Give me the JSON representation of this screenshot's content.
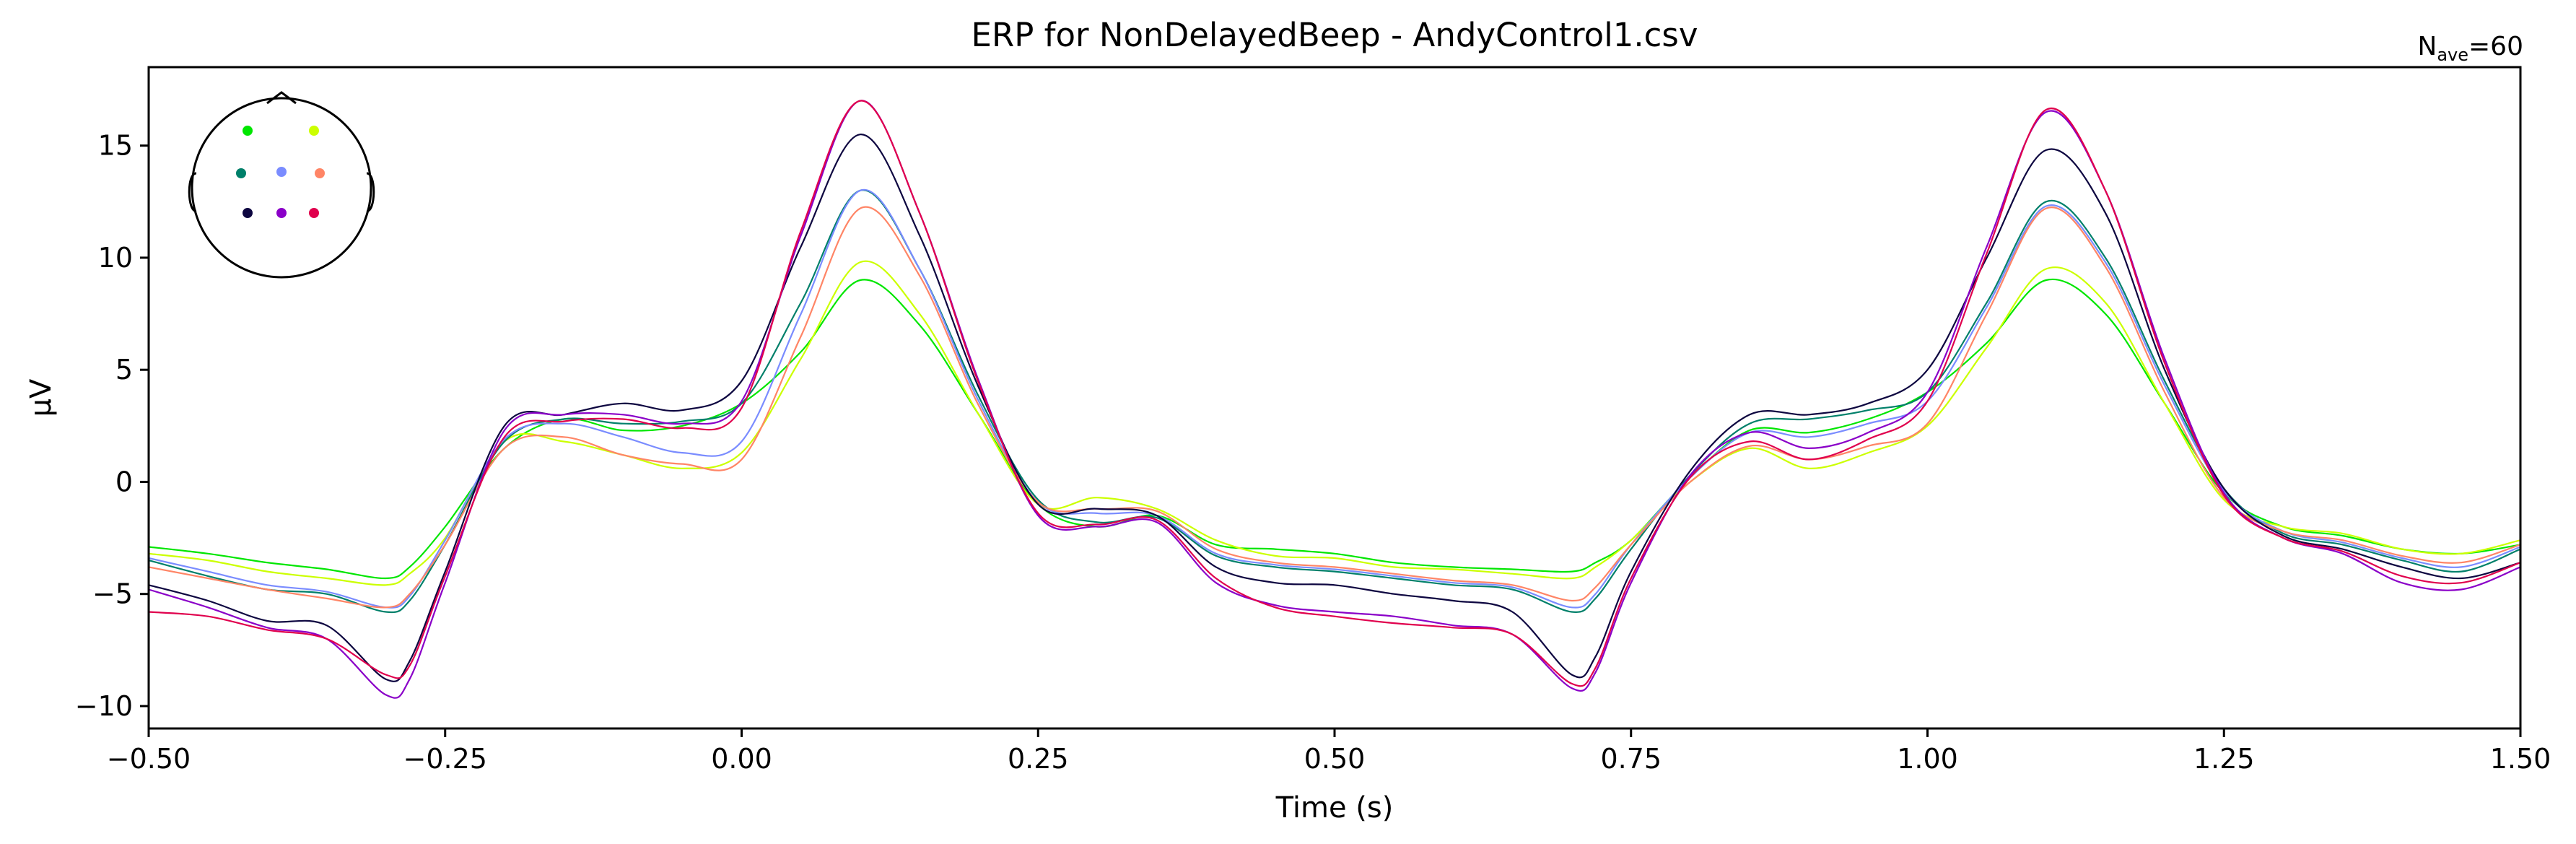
{
  "chart_data": {
    "type": "line",
    "title": "ERP for NonDelayedBeep - AndyControl1.csv",
    "nave_label": {
      "base": "N",
      "sub": "ave",
      "suffix": "=60"
    },
    "xlabel": "Time (s)",
    "ylabel": "µV",
    "xlim": [
      -0.5,
      1.5
    ],
    "ylim": [
      -11,
      18.5
    ],
    "xticks": [
      -0.5,
      -0.25,
      0.0,
      0.25,
      0.5,
      0.75,
      1.0,
      1.25,
      1.5
    ],
    "xtick_labels": [
      "−0.50",
      "−0.25",
      "0.00",
      "0.25",
      "0.50",
      "0.75",
      "1.00",
      "1.25",
      "1.50"
    ],
    "yticks": [
      -10,
      -5,
      0,
      5,
      10,
      15
    ],
    "ytick_labels": [
      "−10",
      "−5",
      "0",
      "5",
      "10",
      "15"
    ],
    "grid": false,
    "sensor_inset": {
      "sensors": [
        {
          "color": "#00e600"
        },
        {
          "color": "#ccff00"
        },
        {
          "color": "#00806a"
        },
        {
          "color": "#7a8cff"
        },
        {
          "color": "#ff8566"
        },
        {
          "color": "#0d0640"
        },
        {
          "color": "#8a00c8"
        },
        {
          "color": "#e0004d"
        }
      ]
    },
    "x": [
      -0.5,
      -0.45,
      -0.4,
      -0.35,
      -0.3,
      -0.28,
      -0.25,
      -0.2,
      -0.15,
      -0.1,
      -0.05,
      0.0,
      0.05,
      0.1,
      0.15,
      0.2,
      0.25,
      0.3,
      0.35,
      0.4,
      0.45,
      0.5,
      0.55,
      0.6,
      0.65,
      0.7,
      0.72,
      0.75,
      0.8,
      0.85,
      0.9,
      0.95,
      1.0,
      1.05,
      1.1,
      1.15,
      1.2,
      1.25,
      1.3,
      1.35,
      1.4,
      1.45,
      1.5
    ],
    "series": [
      {
        "color": "#00e600",
        "values": [
          -2.9,
          -3.2,
          -3.6,
          -3.9,
          -4.3,
          -3.8,
          -2.0,
          1.5,
          2.8,
          2.3,
          2.5,
          3.5,
          5.8,
          9.0,
          7.0,
          3.0,
          -1.0,
          -2.0,
          -1.5,
          -2.8,
          -3.0,
          -3.2,
          -3.6,
          -3.8,
          -3.9,
          -4.0,
          -3.6,
          -2.6,
          0.2,
          2.3,
          2.2,
          2.8,
          4.0,
          6.2,
          9.0,
          7.5,
          3.5,
          -0.5,
          -2.0,
          -2.4,
          -3.0,
          -3.2,
          -2.8
        ]
      },
      {
        "color": "#ccff00",
        "values": [
          -3.2,
          -3.5,
          -4.0,
          -4.3,
          -4.6,
          -4.1,
          -2.5,
          1.8,
          1.8,
          1.2,
          0.6,
          1.3,
          5.5,
          9.8,
          7.5,
          3.0,
          -1.0,
          -0.7,
          -1.2,
          -2.6,
          -3.3,
          -3.4,
          -3.8,
          -3.9,
          -4.1,
          -4.3,
          -3.8,
          -2.6,
          0.0,
          1.5,
          0.6,
          1.3,
          2.5,
          6.0,
          9.5,
          8.0,
          3.5,
          -0.8,
          -2.0,
          -2.3,
          -3.0,
          -3.2,
          -2.6
        ]
      },
      {
        "color": "#00806a",
        "values": [
          -3.5,
          -4.2,
          -4.8,
          -5.0,
          -5.8,
          -5.3,
          -2.8,
          1.8,
          2.8,
          2.6,
          2.7,
          3.5,
          8.0,
          13.0,
          9.5,
          3.8,
          -0.8,
          -1.8,
          -1.6,
          -3.3,
          -3.8,
          -4.0,
          -4.3,
          -4.6,
          -4.8,
          -5.8,
          -5.2,
          -3.0,
          0.3,
          2.6,
          2.8,
          3.2,
          4.0,
          8.0,
          12.5,
          10.0,
          4.5,
          -0.3,
          -2.3,
          -2.8,
          -3.5,
          -4.0,
          -3.0
        ]
      },
      {
        "color": "#7a8cff",
        "values": [
          -3.4,
          -4.0,
          -4.6,
          -4.9,
          -5.6,
          -5.1,
          -2.6,
          1.9,
          2.6,
          2.0,
          1.3,
          1.8,
          7.5,
          13.0,
          9.5,
          3.6,
          -0.9,
          -1.4,
          -1.5,
          -3.2,
          -3.7,
          -3.9,
          -4.2,
          -4.5,
          -4.7,
          -5.6,
          -5.0,
          -2.8,
          0.2,
          2.2,
          2.0,
          2.6,
          3.6,
          7.8,
          12.3,
          9.8,
          4.3,
          -0.4,
          -2.2,
          -2.7,
          -3.4,
          -3.8,
          -2.9
        ]
      },
      {
        "color": "#ff8566",
        "values": [
          -3.8,
          -4.3,
          -4.8,
          -5.2,
          -5.6,
          -5.0,
          -2.8,
          1.5,
          2.0,
          1.2,
          0.8,
          1.0,
          6.5,
          12.2,
          9.2,
          3.4,
          -0.9,
          -1.2,
          -1.3,
          -3.0,
          -3.6,
          -3.8,
          -4.1,
          -4.4,
          -4.6,
          -5.3,
          -4.7,
          -2.8,
          0.0,
          1.6,
          1.0,
          1.6,
          2.6,
          7.5,
          12.2,
          9.6,
          4.0,
          -0.7,
          -2.2,
          -2.6,
          -3.3,
          -3.6,
          -2.8
        ]
      },
      {
        "color": "#0d0640",
        "values": [
          -4.6,
          -5.3,
          -6.2,
          -6.4,
          -8.8,
          -8.0,
          -4.0,
          2.5,
          3.0,
          3.5,
          3.2,
          4.5,
          10.5,
          15.5,
          11.0,
          4.2,
          -1.0,
          -1.2,
          -1.5,
          -3.8,
          -4.5,
          -4.6,
          -5.0,
          -5.3,
          -5.8,
          -8.6,
          -7.8,
          -4.0,
          0.5,
          3.0,
          3.0,
          3.5,
          5.0,
          10.0,
          14.8,
          12.0,
          5.0,
          -0.3,
          -2.4,
          -3.0,
          -3.8,
          -4.3,
          -3.6
        ]
      },
      {
        "color": "#8a00c8",
        "values": [
          -4.8,
          -5.6,
          -6.5,
          -7.0,
          -9.5,
          -8.8,
          -4.5,
          2.3,
          3.0,
          3.0,
          2.6,
          3.6,
          11.0,
          17.0,
          12.0,
          4.5,
          -1.5,
          -2.0,
          -1.8,
          -4.5,
          -5.5,
          -5.8,
          -6.0,
          -6.4,
          -6.8,
          -9.2,
          -8.5,
          -4.5,
          0.3,
          2.2,
          1.5,
          2.2,
          4.0,
          10.5,
          16.5,
          13.0,
          5.5,
          -0.5,
          -2.5,
          -3.2,
          -4.5,
          -4.8,
          -3.8
        ]
      },
      {
        "color": "#e0004d",
        "values": [
          -5.8,
          -6.0,
          -6.6,
          -7.0,
          -8.6,
          -8.2,
          -4.2,
          2.0,
          2.7,
          2.8,
          2.4,
          3.3,
          11.2,
          17.0,
          12.0,
          4.4,
          -1.4,
          -1.9,
          -1.7,
          -4.3,
          -5.6,
          -6.0,
          -6.3,
          -6.5,
          -6.8,
          -9.0,
          -8.3,
          -4.3,
          0.2,
          1.8,
          1.0,
          1.9,
          3.6,
          10.2,
          16.6,
          13.0,
          5.3,
          -0.6,
          -2.5,
          -3.1,
          -4.2,
          -4.5,
          -3.6
        ]
      }
    ]
  }
}
